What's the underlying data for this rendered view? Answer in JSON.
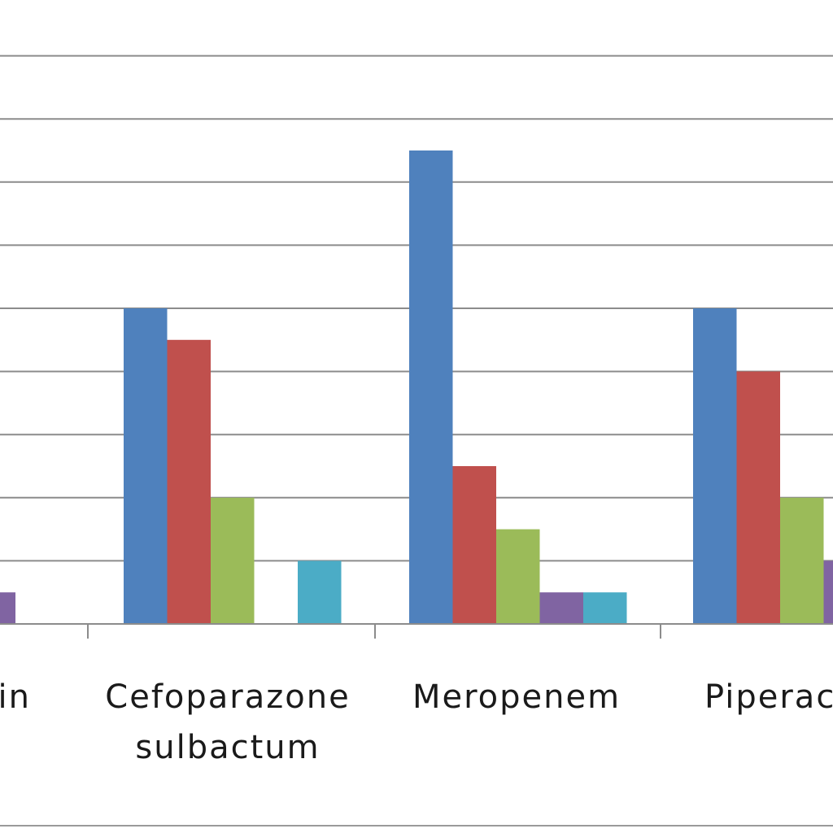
{
  "chart_data": {
    "type": "bar",
    "categories": [
      [
        "...in"
      ],
      [
        "Cefoparazone",
        "sulbactum"
      ],
      [
        "Meropenem"
      ],
      [
        "Piperac..."
      ]
    ],
    "series": [
      {
        "color": "#4f81bd",
        "values": [
          null,
          10,
          15,
          10
        ]
      },
      {
        "color": "#c0504d",
        "values": [
          null,
          9,
          5,
          8
        ]
      },
      {
        "color": "#9bbb59",
        "values": [
          null,
          4,
          3,
          4
        ]
      },
      {
        "color": "#8064a2",
        "values": [
          1,
          0,
          1,
          2
        ]
      },
      {
        "color": "#4bacc6",
        "values": [
          null,
          2,
          1,
          null
        ]
      }
    ],
    "ylim": [
      0,
      19.5
    ],
    "y_gridline_step": 2,
    "grid": true,
    "legend": "none",
    "title": "",
    "xlabel": "",
    "ylabel": ""
  }
}
